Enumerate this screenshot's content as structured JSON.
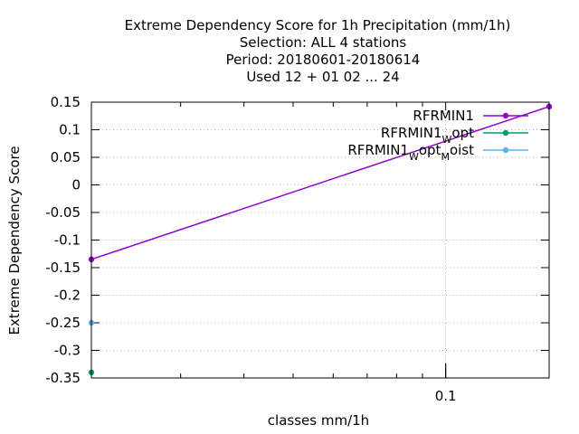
{
  "chart_data": {
    "type": "line",
    "title_lines": [
      "Extreme Dependency Score  for 1h Precipitation (mm/1h)",
      "Selection: ALL      4 stations",
      "Period: 20180601-20180614",
      "Used  12 + 01 02 ... 24"
    ],
    "xlabel": "classes mm/1h",
    "ylabel": "Extreme Dependency Score",
    "xscale": "log",
    "xlim": [
      0.02,
      0.16
    ],
    "ylim": [
      -0.35,
      0.15
    ],
    "x_ticks": [
      {
        "value": 0.1,
        "label": "0.1"
      }
    ],
    "y_ticks": [
      {
        "value": 0.15,
        "label": "0.15"
      },
      {
        "value": 0.1,
        "label": "0.1"
      },
      {
        "value": 0.05,
        "label": "0.05"
      },
      {
        "value": 0,
        "label": "0"
      },
      {
        "value": -0.05,
        "label": "-0.05"
      },
      {
        "value": -0.1,
        "label": "-0.1"
      },
      {
        "value": -0.15,
        "label": "-0.15"
      },
      {
        "value": -0.2,
        "label": "-0.2"
      },
      {
        "value": -0.25,
        "label": "-0.25"
      },
      {
        "value": -0.3,
        "label": "-0.3"
      },
      {
        "value": -0.35,
        "label": "-0.35"
      }
    ],
    "grid": true,
    "legend_position": "top-right",
    "series": [
      {
        "name": "RFRMIN1",
        "color": "#9400d3",
        "marker": "circle",
        "points": [
          {
            "x": 0.02,
            "y": -0.135
          },
          {
            "x": 0.16,
            "y": 0.142
          }
        ]
      },
      {
        "name": "RFRMIN1",
        "name_parts": [
          {
            "text": "RFRMIN1",
            "sub": false
          },
          {
            "text": "W",
            "sub": true
          },
          {
            "text": "opt",
            "sub": false
          }
        ],
        "color": "#009e73",
        "marker": "circle",
        "points": [
          {
            "x": 0.02,
            "y": -0.34
          }
        ]
      },
      {
        "name": "RFRMIN1",
        "name_parts": [
          {
            "text": "RFRMIN1",
            "sub": false
          },
          {
            "text": "W",
            "sub": true
          },
          {
            "text": "opt",
            "sub": false
          },
          {
            "text": "M",
            "sub": true
          },
          {
            "text": "oist",
            "sub": false
          }
        ],
        "color": "#56b4e9",
        "marker": "circle",
        "points": [
          {
            "x": 0.02,
            "y": -0.25
          }
        ]
      }
    ]
  }
}
